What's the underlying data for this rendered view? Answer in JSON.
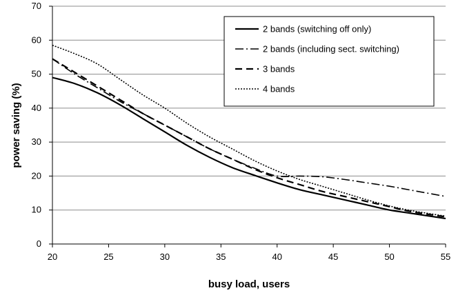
{
  "chart_data": {
    "type": "line",
    "xlabel": "busy load, users",
    "ylabel": "power saving (%)",
    "xlim": [
      20,
      55
    ],
    "ylim": [
      0,
      70
    ],
    "x_ticks": [
      20,
      25,
      30,
      35,
      40,
      45,
      50,
      55
    ],
    "y_ticks": [
      0,
      10,
      20,
      30,
      40,
      50,
      60,
      70
    ],
    "grid": "horizontal",
    "legend_position": "top-right",
    "series": [
      {
        "name": "2 bands (switching off only)",
        "style": "solid",
        "x": [
          20,
          22,
          24,
          26,
          28,
          30,
          32,
          34,
          36,
          38,
          40,
          42,
          44,
          46,
          48,
          50,
          52,
          55
        ],
        "values": [
          49,
          47.2,
          44.5,
          41,
          37,
          33,
          29,
          25.5,
          22.5,
          20.2,
          18,
          16,
          14.5,
          13,
          11.5,
          10,
          9,
          7.5
        ]
      },
      {
        "name": "2 bands (including sect. switching)",
        "style": "dash-dot",
        "x": [
          20,
          22,
          24,
          26,
          28,
          30,
          32,
          34,
          36,
          38,
          40,
          42,
          44,
          46,
          48,
          50,
          52,
          55
        ],
        "values": [
          54.5,
          50,
          46,
          42,
          38.5,
          35,
          31.5,
          28,
          25,
          22.3,
          20,
          20,
          19.8,
          19,
          18,
          17,
          15.8,
          14
        ]
      },
      {
        "name": "3 bands",
        "style": "dashed",
        "x": [
          20,
          22,
          24,
          26,
          28,
          30,
          32,
          34,
          36,
          38,
          40,
          42,
          44,
          46,
          48,
          50,
          52,
          55
        ],
        "values": [
          54.5,
          50.5,
          46.5,
          42.5,
          38.5,
          35,
          31.5,
          28,
          25,
          22,
          19.5,
          17.5,
          15.5,
          14,
          12.5,
          11,
          9.5,
          8
        ]
      },
      {
        "name": "4 bands",
        "style": "dotted",
        "x": [
          20,
          22,
          24,
          26,
          28,
          30,
          32,
          34,
          36,
          38,
          40,
          42,
          44,
          46,
          48,
          50,
          52,
          55
        ],
        "values": [
          58.5,
          56,
          53,
          48.5,
          44,
          40,
          35.5,
          31.5,
          28,
          24.5,
          21.5,
          19,
          17,
          15,
          13,
          11.2,
          9.8,
          8.2
        ]
      }
    ]
  }
}
